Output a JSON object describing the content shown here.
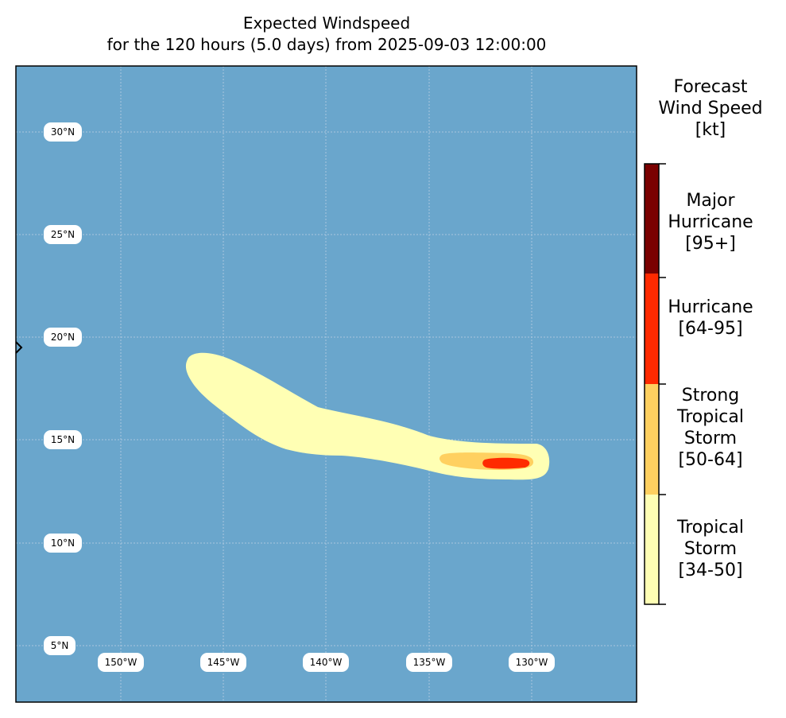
{
  "title": {
    "line1": "Expected Windspeed",
    "line2": "for the 120 hours (5.0 days) from 2025-09-03 12:00:00"
  },
  "map": {
    "ocean_color": "#6aa6cc",
    "gridline_color": "#a9c7de",
    "lat_labels": [
      "30°N",
      "25°N",
      "20°N",
      "15°N",
      "10°N",
      "5°N"
    ],
    "lon_labels": [
      "150°W",
      "145°W",
      "140°W",
      "135°W",
      "130°W"
    ]
  },
  "colorbar": {
    "title_lines": [
      "Forecast",
      "Wind Speed",
      "[kt]"
    ],
    "categories": [
      {
        "lines": [
          "Major",
          "Hurricane",
          "[95+]"
        ],
        "color": "#7a0000"
      },
      {
        "lines": [
          "Hurricane",
          "[64-95]"
        ],
        "color": "#ff2a00"
      },
      {
        "lines": [
          "Strong",
          "Tropical",
          "Storm",
          "[50-64]"
        ],
        "color": "#ffd060"
      },
      {
        "lines": [
          "Tropical",
          "Storm",
          "[34-50]"
        ],
        "color": "#ffffb4"
      }
    ]
  }
}
